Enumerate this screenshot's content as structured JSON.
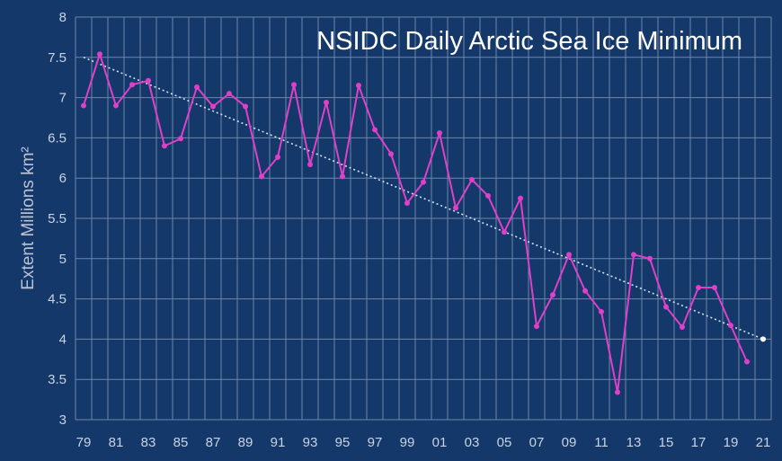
{
  "chart_data": {
    "type": "line",
    "title": "NSIDC Daily Arctic Sea Ice Minimum",
    "xlabel": "",
    "ylabel": "Extent Millions km²",
    "ylim": [
      3,
      8
    ],
    "yticks": [
      "3",
      "3.5",
      "4",
      "4.5",
      "5",
      "5.5",
      "6",
      "6.5",
      "7",
      "7.5",
      "8"
    ],
    "x_tick_labels": [
      "79",
      "81",
      "83",
      "85",
      "87",
      "89",
      "91",
      "93",
      "95",
      "97",
      "99",
      "01",
      "03",
      "05",
      "07",
      "09",
      "11",
      "13",
      "15",
      "17",
      "19",
      "21"
    ],
    "grid": true,
    "colors": {
      "background": "#14386a",
      "grid": "#6f86ab",
      "series": "#e040c8",
      "trend": "#cfe3f5"
    },
    "series": [
      {
        "x": [
          1979,
          1980,
          1981,
          1982,
          1983,
          1984,
          1985,
          1986,
          1987,
          1988,
          1989,
          1990,
          1991,
          1992,
          1993,
          1994,
          1995,
          1996,
          1997,
          1998,
          1999,
          2000,
          2001,
          2002,
          2003,
          2004,
          2005,
          2006,
          2007,
          2008,
          2009,
          2010,
          2011,
          2012,
          2013,
          2014,
          2015,
          2016,
          2017,
          2018,
          2019,
          2020
        ],
        "values": [
          6.9,
          7.54,
          6.9,
          7.16,
          7.21,
          6.4,
          6.49,
          7.13,
          6.89,
          7.05,
          6.89,
          6.02,
          6.26,
          7.16,
          6.17,
          6.94,
          6.02,
          7.15,
          6.6,
          6.3,
          5.69,
          5.95,
          6.56,
          5.63,
          5.98,
          5.78,
          5.33,
          5.75,
          4.16,
          4.55,
          5.05,
          4.6,
          4.34,
          3.34,
          5.05,
          5.0,
          4.4,
          4.15,
          4.64,
          4.64,
          4.17,
          3.72
        ]
      },
      {
        "type": "linear-trend",
        "x": [
          1979,
          2021
        ],
        "values": [
          7.5,
          4.0
        ]
      }
    ]
  }
}
